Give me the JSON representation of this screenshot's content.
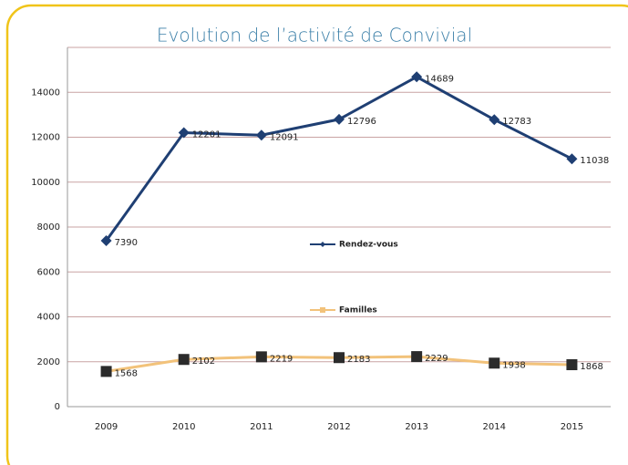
{
  "chart_data": {
    "type": "line",
    "title": "Evolution de l’activité de Convivial",
    "categories": [
      "2009",
      "2010",
      "2011",
      "2012",
      "2013",
      "2014",
      "2015"
    ],
    "series": [
      {
        "name": "Rendez-vous",
        "color": "#1f3f73",
        "marker": "diamond",
        "values": [
          7390,
          12201,
          12091,
          12796,
          14689,
          12783,
          11038
        ]
      },
      {
        "name": "Familles",
        "color": "#f2c27a",
        "marker": "square",
        "values": [
          1568,
          2102,
          2219,
          2183,
          2229,
          1938,
          1868
        ]
      }
    ],
    "ylim": [
      0,
      16000
    ],
    "yticks": [
      0,
      2000,
      4000,
      6000,
      8000,
      10000,
      12000,
      14000
    ],
    "grid": true
  }
}
